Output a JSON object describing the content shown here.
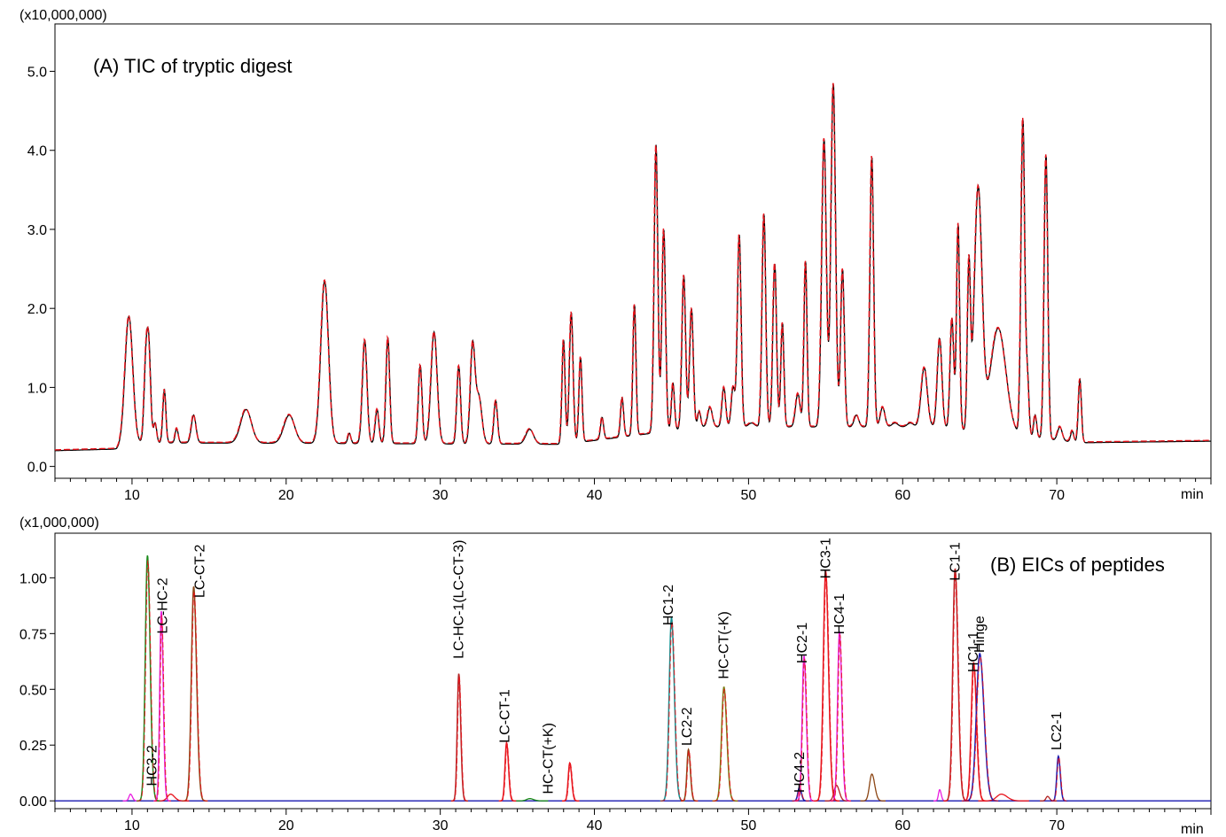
{
  "colors": {
    "tic_primary": "#000000",
    "tic_overlay": "#e8141c",
    "eic_palette": [
      "#1a8a1a",
      "#8b4513",
      "#e91ee0",
      "#b22222",
      "#0f8f8f",
      "#7a7a10",
      "#1a1ab0",
      "#e8141c"
    ]
  },
  "chart_data": [
    {
      "type": "line",
      "title": "(A) TIC of tryptic digest",
      "multiplier_label": "(x10,000,000)",
      "x_unit_label": "min",
      "xlim": [
        5,
        80
      ],
      "ylim": [
        -0.15,
        5.6
      ],
      "x_ticks": [
        10,
        20,
        30,
        40,
        50,
        60,
        70
      ],
      "x_tick_labels": [
        "10",
        "20",
        "30",
        "40",
        "50",
        "60",
        "70"
      ],
      "y_ticks": [
        0,
        1,
        2,
        3,
        4,
        5
      ],
      "y_tick_labels": [
        "0.0",
        "1.0",
        "2.0",
        "3.0",
        "4.0",
        "5.0"
      ],
      "baseline": [
        [
          5,
          0.2
        ],
        [
          9,
          0.22
        ],
        [
          9.5,
          0.3
        ],
        [
          38,
          0.28
        ],
        [
          47,
          0.5
        ],
        [
          62,
          0.5
        ],
        [
          71.5,
          0.3
        ],
        [
          80,
          0.32
        ]
      ],
      "peaks": [
        [
          9.8,
          1.9,
          0.25
        ],
        [
          10.9,
          1.26,
          0.12
        ],
        [
          11.1,
          1.4,
          0.12
        ],
        [
          11.5,
          0.55,
          0.1
        ],
        [
          12.1,
          0.97,
          0.1
        ],
        [
          12.9,
          0.48,
          0.1
        ],
        [
          14,
          0.65,
          0.15
        ],
        [
          17.4,
          0.72,
          0.35
        ],
        [
          20.2,
          0.65,
          0.35
        ],
        [
          22.5,
          2.35,
          0.25
        ],
        [
          24.1,
          0.42,
          0.1
        ],
        [
          25.1,
          1.6,
          0.15
        ],
        [
          25.9,
          0.72,
          0.12
        ],
        [
          26.6,
          1.63,
          0.12
        ],
        [
          28.7,
          1.28,
          0.12
        ],
        [
          29.6,
          1.7,
          0.2
        ],
        [
          31.2,
          1.27,
          0.12
        ],
        [
          32.1,
          1.5,
          0.15
        ],
        [
          32.5,
          0.88,
          0.2
        ],
        [
          33.6,
          0.83,
          0.12
        ],
        [
          35.8,
          0.47,
          0.25
        ],
        [
          38,
          1.6,
          0.1
        ],
        [
          38.5,
          1.95,
          0.12
        ],
        [
          39.1,
          1.38,
          0.1
        ],
        [
          40.5,
          0.62,
          0.1
        ],
        [
          41.8,
          0.87,
          0.1
        ],
        [
          42.6,
          2.05,
          0.1
        ],
        [
          44,
          4.07,
          0.12
        ],
        [
          44.5,
          3.0,
          0.12
        ],
        [
          45.1,
          1.05,
          0.1
        ],
        [
          45.8,
          2.42,
          0.12
        ],
        [
          46.3,
          2.0,
          0.12
        ],
        [
          46.8,
          0.7,
          0.1
        ],
        [
          47.5,
          0.75,
          0.15
        ],
        [
          48.4,
          1.0,
          0.12
        ],
        [
          49,
          1.0,
          0.12
        ],
        [
          49.4,
          2.93,
          0.12
        ],
        [
          50.2,
          0.55,
          0.2
        ],
        [
          51,
          3.2,
          0.12
        ],
        [
          51.7,
          2.57,
          0.12
        ],
        [
          52.2,
          1.82,
          0.1
        ],
        [
          53.2,
          0.92,
          0.15
        ],
        [
          53.7,
          2.6,
          0.1
        ],
        [
          54.9,
          4.15,
          0.15
        ],
        [
          55.5,
          4.85,
          0.15
        ],
        [
          56.1,
          2.5,
          0.12
        ],
        [
          57,
          0.65,
          0.15
        ],
        [
          58,
          3.92,
          0.12
        ],
        [
          58.7,
          0.75,
          0.15
        ],
        [
          59.5,
          0.5,
          0.2
        ],
        [
          60.5,
          0.52,
          0.2
        ],
        [
          61.4,
          1.25,
          0.2
        ],
        [
          62.4,
          1.62,
          0.15
        ],
        [
          63.2,
          1.88,
          0.12
        ],
        [
          63.6,
          3.08,
          0.1
        ],
        [
          64.3,
          2.5,
          0.1
        ],
        [
          64.9,
          3.5,
          0.25
        ],
        [
          66.2,
          1.75,
          0.5
        ],
        [
          67.8,
          4.4,
          0.12
        ],
        [
          68.1,
          1.1,
          0.1
        ],
        [
          68.6,
          0.65,
          0.1
        ],
        [
          69.3,
          3.95,
          0.12
        ],
        [
          70.2,
          0.5,
          0.15
        ],
        [
          71,
          0.45,
          0.1
        ],
        [
          71.5,
          1.1,
          0.1
        ]
      ]
    },
    {
      "type": "line",
      "title": "(B) EICs of peptides",
      "multiplier_label": "(x1,000,000)",
      "x_unit_label": "min",
      "xlim": [
        5,
        80
      ],
      "ylim": [
        -0.035,
        1.2
      ],
      "x_ticks": [
        10,
        20,
        30,
        40,
        50,
        60,
        70
      ],
      "x_tick_labels": [
        "10",
        "20",
        "30",
        "40",
        "50",
        "60",
        "70"
      ],
      "y_ticks": [
        0,
        0.25,
        0.5,
        0.75,
        1.0
      ],
      "y_tick_labels": [
        "0.00",
        "0.25",
        "0.50",
        "0.75",
        "1.00"
      ],
      "peptides": [
        {
          "label": "HC3-2",
          "rt": 11.0,
          "height": 1.1,
          "width": 0.14,
          "color_index": 0,
          "label_x": 11.3,
          "label_y": 0.25
        },
        {
          "label": "LC-HC-2",
          "rt": 11.9,
          "height": 0.85,
          "width": 0.1,
          "color_index": 2,
          "label_x": 12.0,
          "label_y": 1.0
        },
        {
          "label": "LC-CT-2",
          "rt": 14.0,
          "height": 0.96,
          "width": 0.15,
          "color_index": 1,
          "label_x": 14.4,
          "label_y": 1.15
        },
        {
          "label": "LC-HC-1(LC-CT-3)",
          "rt": 31.2,
          "height": 0.57,
          "width": 0.1,
          "color_index": 3,
          "label_x": 31.2,
          "label_y": 1.17
        },
        {
          "label": "LC-CT-1",
          "rt": 34.3,
          "height": 0.26,
          "width": 0.1,
          "color_index": 7,
          "label_x": 34.2,
          "label_y": 0.5
        },
        {
          "label": "HC-CT(+K)",
          "rt": 38.4,
          "height": 0.17,
          "width": 0.1,
          "color_index": 7,
          "label_x": 37.0,
          "label_y": 0.35
        },
        {
          "label": "HC1-2",
          "rt": 45.0,
          "height": 0.82,
          "width": 0.15,
          "color_index": 4,
          "label_x": 44.8,
          "label_y": 0.97
        },
        {
          "label": "LC2-2",
          "rt": 46.1,
          "height": 0.23,
          "width": 0.1,
          "color_index": 1,
          "label_x": 46.0,
          "label_y": 0.42
        },
        {
          "label": "HC-CT(-K)",
          "rt": 48.4,
          "height": 0.51,
          "width": 0.15,
          "color_index": 5,
          "label_x": 48.4,
          "label_y": 0.85
        },
        {
          "label": "HC4-2",
          "rt": 53.3,
          "height": 0.06,
          "width": 0.1,
          "color_index": 6,
          "label_x": 53.3,
          "label_y": 0.22
        },
        {
          "label": "HC2-1",
          "rt": 53.6,
          "height": 0.65,
          "width": 0.12,
          "color_index": 2,
          "label_x": 53.5,
          "label_y": 0.8
        },
        {
          "label": "HC3-1",
          "rt": 55.0,
          "height": 1.03,
          "width": 0.15,
          "color_index": 7,
          "label_x": 55.0,
          "label_y": 1.18
        },
        {
          "label": "HC4-1",
          "rt": 55.9,
          "height": 0.76,
          "width": 0.12,
          "color_index": 2,
          "label_x": 55.9,
          "label_y": 0.93
        },
        {
          "label": "LC1-1",
          "rt": 63.4,
          "height": 1.04,
          "width": 0.15,
          "color_index": 3,
          "label_x": 63.4,
          "label_y": 1.16
        },
        {
          "label": "HC1-1",
          "rt": 64.6,
          "height": 0.62,
          "width": 0.15,
          "color_index": 7,
          "label_x": 64.6,
          "label_y": 0.76
        },
        {
          "label": "Hinge",
          "rt": 65.0,
          "height": 0.66,
          "width": 0.22,
          "color_index": 6,
          "label_x": 65.0,
          "label_y": 0.83
        },
        {
          "label": "LC2-1",
          "rt": 70.1,
          "height": 0.2,
          "width": 0.1,
          "color_index": 6,
          "label_x": 70.0,
          "label_y": 0.4
        }
      ],
      "minor_peaks": [
        {
          "rt": 9.9,
          "height": 0.03,
          "width": 0.1,
          "color_index": 2
        },
        {
          "rt": 12.5,
          "height": 0.03,
          "width": 0.2,
          "color_index": 7
        },
        {
          "rt": 35.8,
          "height": 0.01,
          "width": 0.2,
          "color_index": 0
        },
        {
          "rt": 55.7,
          "height": 0.07,
          "width": 0.15,
          "color_index": 3
        },
        {
          "rt": 58.0,
          "height": 0.12,
          "width": 0.15,
          "color_index": 1
        },
        {
          "rt": 62.4,
          "height": 0.05,
          "width": 0.08,
          "color_index": 2
        },
        {
          "rt": 66.4,
          "height": 0.03,
          "width": 0.3,
          "color_index": 7
        },
        {
          "rt": 69.4,
          "height": 0.02,
          "width": 0.1,
          "color_index": 3
        }
      ]
    }
  ]
}
